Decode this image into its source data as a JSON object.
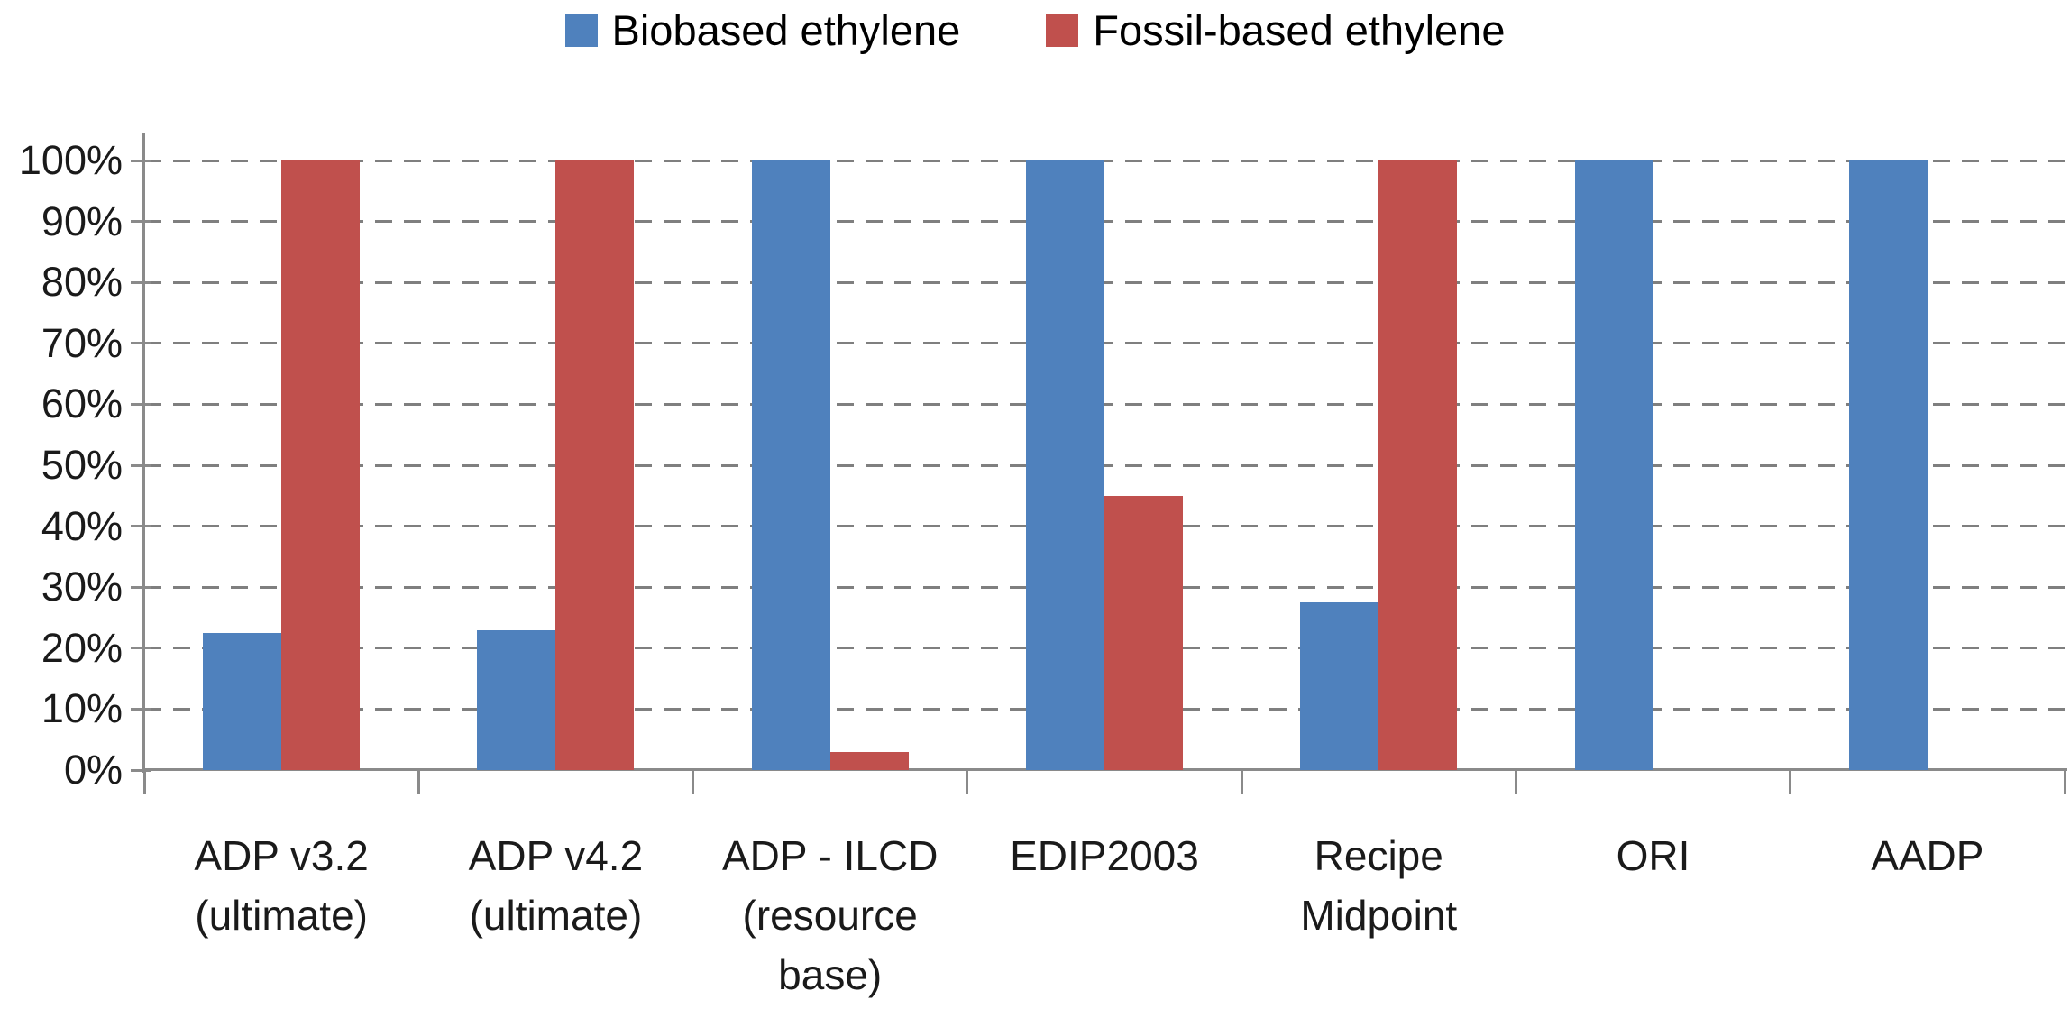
{
  "chart_data": {
    "type": "bar",
    "title": "",
    "categories": [
      "ADP v3.2 (ultimate)",
      "ADP v4.2 (ultimate)",
      "ADP - ILCD (resource base)",
      "EDIP2003",
      "Recipe Midpoint",
      "ORI",
      "AADP"
    ],
    "series": [
      {
        "name": "Biobased ethylene",
        "color": "#4F81BD",
        "values": [
          22.5,
          23,
          100,
          100,
          27.5,
          100,
          100
        ]
      },
      {
        "name": "Fossil-based ethylene",
        "color": "#C0504D",
        "values": [
          100,
          100,
          3,
          45,
          100,
          0,
          0
        ]
      }
    ],
    "ylim": [
      0,
      100
    ],
    "ytick_step": 10,
    "ytick_labels": [
      "0%",
      "10%",
      "20%",
      "30%",
      "40%",
      "50%",
      "60%",
      "70%",
      "80%",
      "90%",
      "100%"
    ],
    "ytick_format": "percent",
    "grid": "horizontal-dashed",
    "legend_position": "top-center",
    "colors": {
      "axis": "#8A8A8A",
      "gridline": "#7F7F7F",
      "text": "#1A1A1A",
      "background": "#FFFFFF"
    }
  },
  "legend": {
    "items": [
      {
        "label": "Biobased ethylene",
        "color": "#4F81BD"
      },
      {
        "label": "Fossil-based ethylene",
        "color": "#C0504D"
      }
    ]
  }
}
